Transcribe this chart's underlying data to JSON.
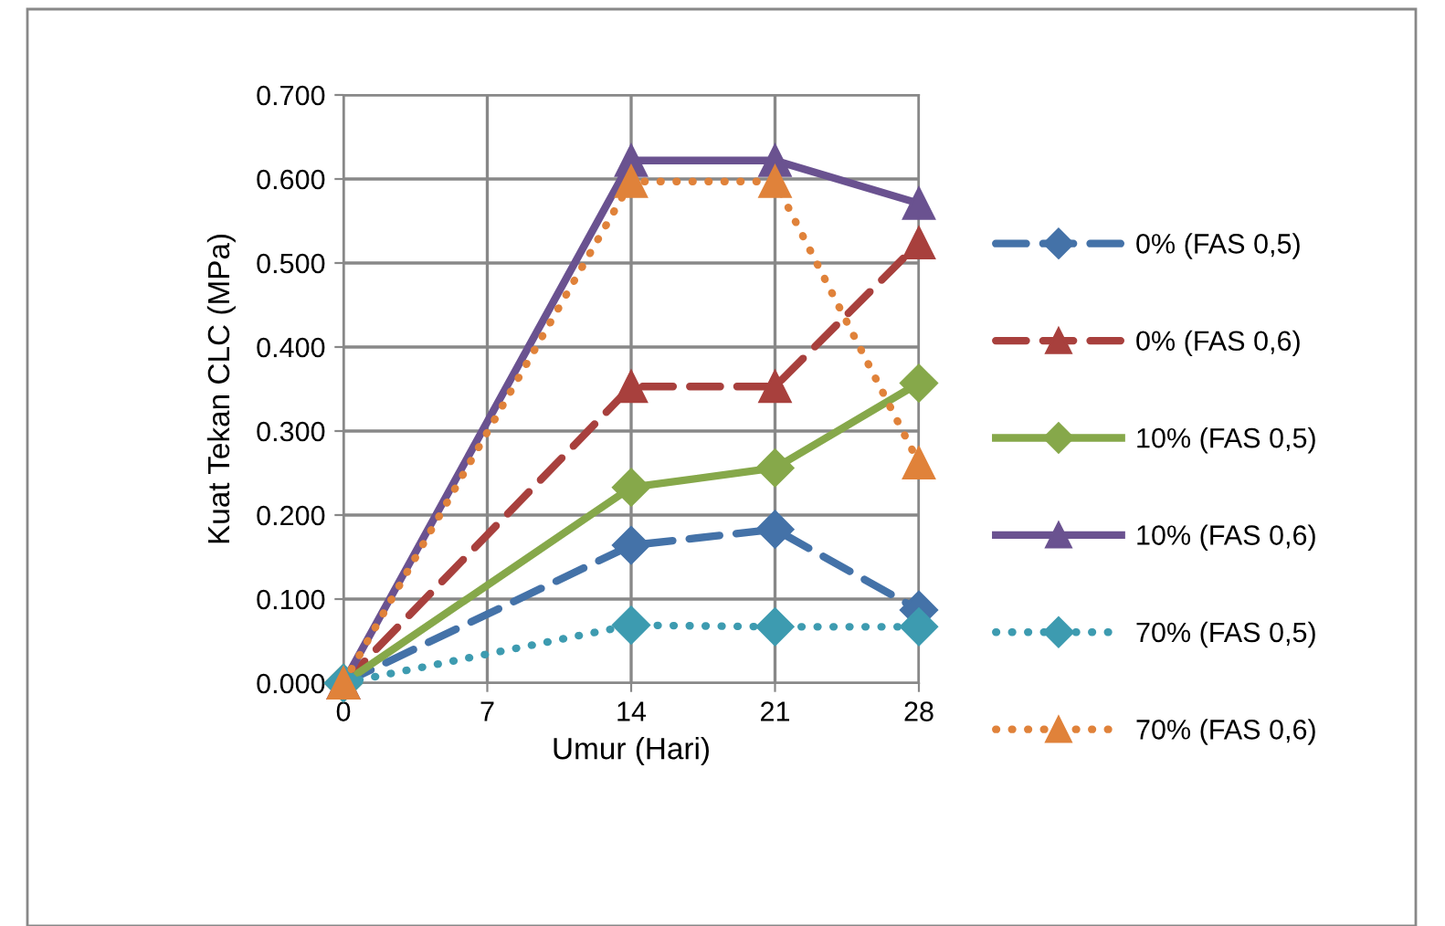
{
  "chart_data": {
    "type": "line",
    "xlabel": "Umur (Hari)",
    "ylabel": "Kuat Tekan CLC (MPa)",
    "x": [
      0,
      14,
      21,
      28
    ],
    "xlim": [
      0,
      28
    ],
    "xticks": [
      0,
      7,
      14,
      21,
      28
    ],
    "ylim": [
      0,
      0.7
    ],
    "yticks": [
      {
        "value": 0,
        "label": "0.000"
      },
      {
        "value": 0.1,
        "label": "0.100"
      },
      {
        "value": 0.2,
        "label": "0.200"
      },
      {
        "value": 0.3,
        "label": "0.300"
      },
      {
        "value": 0.4,
        "label": "0.400"
      },
      {
        "value": 0.5,
        "label": "0.500"
      },
      {
        "value": 0.6,
        "label": "0.600"
      },
      {
        "value": 0.7,
        "label": "0.700"
      }
    ],
    "grid": true,
    "legend": "right",
    "series": [
      {
        "name": "0% (FAS 0,5)",
        "color": "#4472a8",
        "line_style": "dashed",
        "marker": "diamond",
        "values": [
          0,
          0.164,
          0.183,
          0.087
        ]
      },
      {
        "name": "0% (FAS 0,6)",
        "color": "#a8403d",
        "line_style": "dashed",
        "marker": "triangle",
        "values": [
          0,
          0.353,
          0.353,
          0.524
        ]
      },
      {
        "name": "10% (FAS 0,5)",
        "color": "#86a84a",
        "line_style": "solid",
        "marker": "diamond",
        "values": [
          0,
          0.233,
          0.256,
          0.357
        ]
      },
      {
        "name": "10% (FAS 0,6)",
        "color": "#6a5290",
        "line_style": "solid",
        "marker": "triangle",
        "values": [
          0,
          0.622,
          0.622,
          0.571
        ]
      },
      {
        "name": "70% (FAS 0,5)",
        "color": "#3d9bb0",
        "line_style": "dotted",
        "marker": "diamond",
        "values": [
          0,
          0.069,
          0.067,
          0.067
        ]
      },
      {
        "name": "70% (FAS 0,6)",
        "color": "#e0823a",
        "line_style": "dotted",
        "marker": "triangle",
        "values": [
          0,
          0.597,
          0.597,
          0.262
        ]
      }
    ]
  }
}
